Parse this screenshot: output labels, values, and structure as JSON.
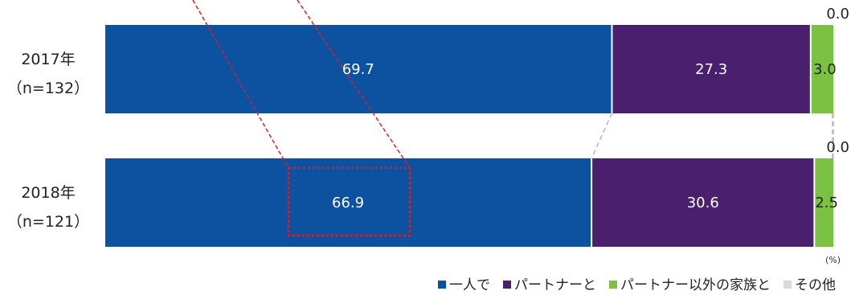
{
  "chart_data": {
    "type": "bar",
    "orientation": "horizontal",
    "stacked": "percent",
    "unit_label": "(%)",
    "categories": [
      [
        "2017年",
        "（n=132）"
      ],
      [
        "2018年",
        "（n=121）"
      ]
    ],
    "series": [
      {
        "name": "一人で",
        "color": "#0d52a0",
        "values": [
          69.7,
          66.9
        ],
        "labels": [
          "69.7",
          "66.9"
        ],
        "label_color": "#ffffff"
      },
      {
        "name": "パートナーと",
        "color": "#4a1f6e",
        "values": [
          27.3,
          30.6
        ],
        "labels": [
          "27.3",
          "30.6"
        ],
        "label_color": "#ffffff"
      },
      {
        "name": "パートナー以外の家族と",
        "color": "#7cc242",
        "values": [
          3.0,
          2.5
        ],
        "labels": [
          "3.0",
          "2.5"
        ],
        "label_color": "#222222"
      },
      {
        "name": "その他",
        "color": "#d9d9d9",
        "values": [
          0.0,
          0.0
        ],
        "labels": [
          "0.0",
          "0.0"
        ],
        "label_color": "#222222"
      }
    ],
    "xlim": [
      0,
      100
    ],
    "legend_position": "bottom-right",
    "highlight": {
      "series_index": 0,
      "category_index": 1,
      "style": "dotted-red-box"
    }
  }
}
